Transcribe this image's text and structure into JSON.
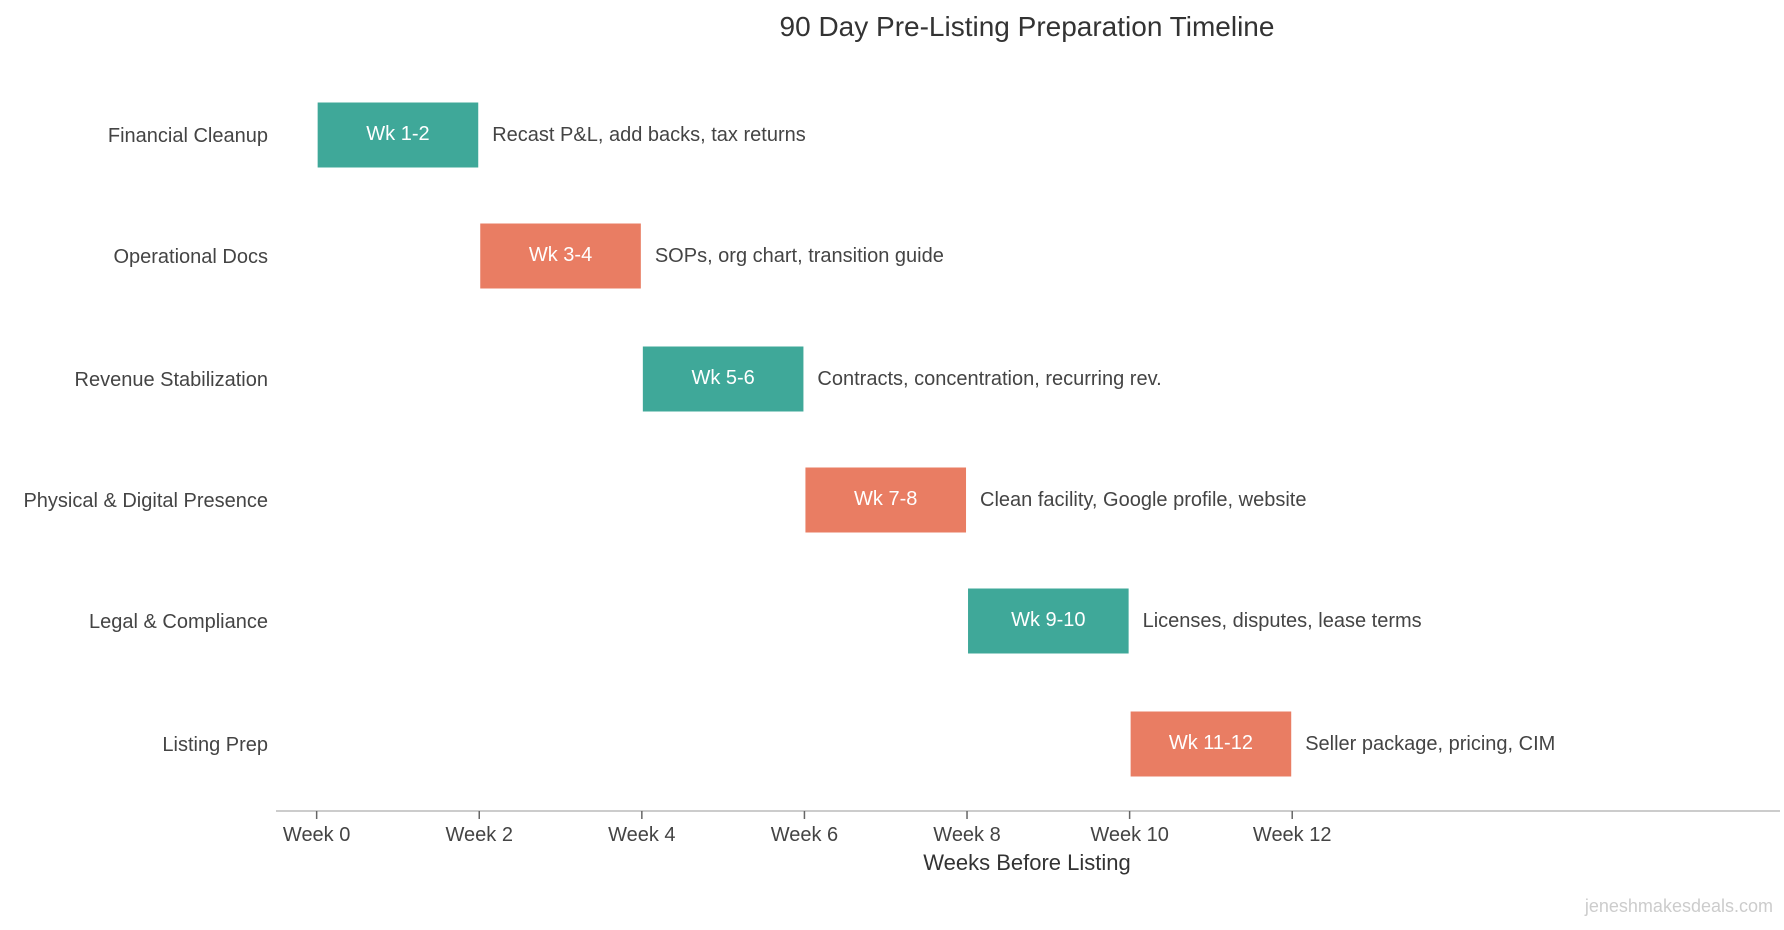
{
  "chart_data": {
    "type": "bar",
    "orientation": "horizontal-gantt",
    "title": "90 Day Pre-Listing Preparation Timeline",
    "xlabel": "Weeks Before Listing",
    "ylabel": "",
    "xlim": [
      -0.5,
      18
    ],
    "grid": false,
    "xticks": [
      {
        "value": 0,
        "label": "Week 0"
      },
      {
        "value": 2,
        "label": "Week 2"
      },
      {
        "value": 4,
        "label": "Week 4"
      },
      {
        "value": 6,
        "label": "Week 6"
      },
      {
        "value": 8,
        "label": "Week 8"
      },
      {
        "value": 10,
        "label": "Week 10"
      },
      {
        "value": 12,
        "label": "Week 12"
      }
    ],
    "colors": {
      "teal": "#3fa899",
      "coral": "#e97d63"
    },
    "tasks": [
      {
        "category": "Financial Cleanup",
        "start": 0,
        "end": 2,
        "label": "Wk 1-2",
        "note": "Recast P&L, add backs, tax returns",
        "color": "#3fa899"
      },
      {
        "category": "Operational Docs",
        "start": 2,
        "end": 4,
        "label": "Wk 3-4",
        "note": "SOPs, org chart, transition guide",
        "color": "#e97d63"
      },
      {
        "category": "Revenue Stabilization",
        "start": 4,
        "end": 6,
        "label": "Wk 5-6",
        "note": "Contracts, concentration, recurring rev.",
        "color": "#3fa899"
      },
      {
        "category": "Physical & Digital Presence",
        "start": 6,
        "end": 8,
        "label": "Wk 7-8",
        "note": "Clean facility, Google profile, website",
        "color": "#e97d63"
      },
      {
        "category": "Legal & Compliance",
        "start": 8,
        "end": 10,
        "label": "Wk 9-10",
        "note": "Licenses, disputes, lease terms",
        "color": "#3fa899"
      },
      {
        "category": "Listing Prep",
        "start": 10,
        "end": 12,
        "label": "Wk 11-12",
        "note": "Seller package, pricing, CIM",
        "color": "#e97d63"
      }
    ]
  },
  "watermark": "jeneshmakesdeals.com"
}
